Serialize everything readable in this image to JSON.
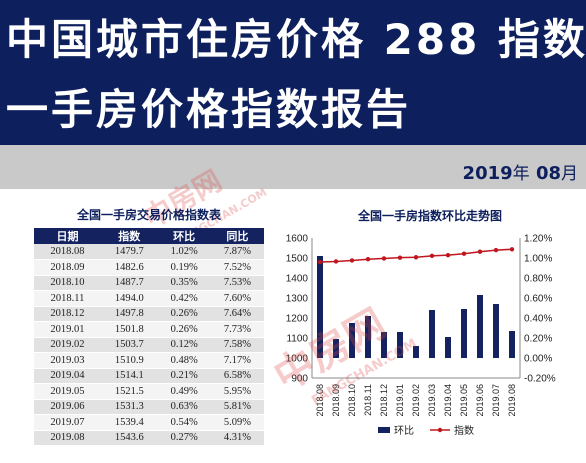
{
  "header": {
    "title_line1": "中国城市住房价格 288 指数",
    "title_line2": "一手房价格指数报告"
  },
  "date": {
    "year": "2019",
    "year_unit": "年",
    "month": "08",
    "month_unit": "月"
  },
  "table": {
    "title": "全国一手房交易价格指数表",
    "columns": [
      "日期",
      "指数",
      "环比",
      "同比"
    ],
    "rows": [
      [
        "2018.08",
        "1479.7",
        "1.02%",
        "7.87%"
      ],
      [
        "2018.09",
        "1482.6",
        "0.19%",
        "7.52%"
      ],
      [
        "2018.10",
        "1487.7",
        "0.35%",
        "7.53%"
      ],
      [
        "2018.11",
        "1494.0",
        "0.42%",
        "7.60%"
      ],
      [
        "2018.12",
        "1497.8",
        "0.26%",
        "7.64%"
      ],
      [
        "2019.01",
        "1501.8",
        "0.26%",
        "7.73%"
      ],
      [
        "2019.02",
        "1503.7",
        "0.12%",
        "7.58%"
      ],
      [
        "2019.03",
        "1510.9",
        "0.48%",
        "7.17%"
      ],
      [
        "2019.04",
        "1514.1",
        "0.21%",
        "6.58%"
      ],
      [
        "2019.05",
        "1521.5",
        "0.49%",
        "5.95%"
      ],
      [
        "2019.06",
        "1531.3",
        "0.63%",
        "5.81%"
      ],
      [
        "2019.07",
        "1539.4",
        "0.54%",
        "5.09%"
      ],
      [
        "2019.08",
        "1543.6",
        "0.27%",
        "4.31%"
      ]
    ]
  },
  "watermark": {
    "brand": "中房网",
    "site": "FANGCHAN.COM"
  },
  "colors": {
    "navy": "#0d1f5c",
    "bar": "#14235f",
    "line": "#c0161e"
  },
  "chart_data": {
    "type": "bar",
    "title": "全国一手房指数环比走势图",
    "categories": [
      "2018.08",
      "2018.09",
      "2018.10",
      "2018.11",
      "2018.12",
      "2019.01",
      "2019.02",
      "2019.03",
      "2019.04",
      "2019.05",
      "2019.06",
      "2019.07",
      "2019.08"
    ],
    "series": [
      {
        "name": "环比",
        "type": "bar",
        "axis": "right",
        "values": [
          1.02,
          0.19,
          0.35,
          0.42,
          0.26,
          0.26,
          0.12,
          0.48,
          0.21,
          0.49,
          0.63,
          0.54,
          0.27
        ]
      },
      {
        "name": "指数",
        "type": "line",
        "axis": "left",
        "values": [
          1479.7,
          1482.6,
          1487.7,
          1494.0,
          1497.8,
          1501.8,
          1503.7,
          1510.9,
          1514.1,
          1521.5,
          1531.3,
          1539.4,
          1543.6
        ]
      }
    ],
    "y_left": {
      "min": 900,
      "max": 1600,
      "ticks": [
        "900",
        "1000",
        "1100",
        "1200",
        "1300",
        "1400",
        "1500",
        "1600"
      ]
    },
    "y_right": {
      "min": -0.2,
      "max": 1.2,
      "ticks": [
        "-0.20%",
        "0.00%",
        "0.20%",
        "0.40%",
        "0.60%",
        "0.80%",
        "1.00%",
        "1.20%"
      ]
    },
    "legend": "bottom",
    "grid": false
  }
}
